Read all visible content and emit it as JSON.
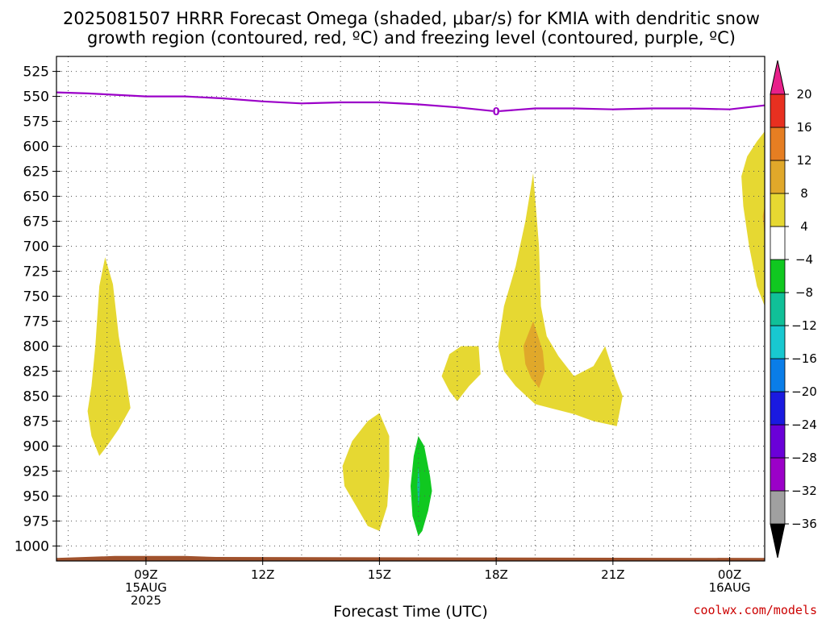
{
  "title": {
    "line1": "2025081507 HRRR Forecast Omega (shaded, μbar/s) for KMIA with dendritic snow",
    "line2": "growth region (contoured, red, ºC) and freezing level (contoured, purple, ºC)"
  },
  "credit": "coolwx.com/models",
  "chart_data": {
    "type": "contour",
    "xlabel": "Forecast Time (UTC)",
    "x_unit": "hours since 2025-08-15 06Z",
    "xlim": [
      6.7,
      24.9
    ],
    "x_ticks": [
      {
        "x": 9,
        "lines": [
          "09Z",
          "15AUG",
          "2025"
        ]
      },
      {
        "x": 12,
        "lines": [
          "12Z"
        ]
      },
      {
        "x": 15,
        "lines": [
          "15Z"
        ]
      },
      {
        "x": 18,
        "lines": [
          "18Z"
        ]
      },
      {
        "x": 21,
        "lines": [
          "21Z"
        ]
      },
      {
        "x": 24,
        "lines": [
          "00Z",
          "16AUG"
        ]
      }
    ],
    "y_unit": "hPa",
    "ylim": [
      1015,
      510
    ],
    "y_ticks": [
      525,
      550,
      575,
      600,
      625,
      650,
      675,
      700,
      725,
      750,
      775,
      800,
      825,
      850,
      875,
      900,
      925,
      950,
      975,
      1000
    ],
    "grid": true,
    "colorbar": {
      "levels": [
        -36,
        -32,
        -28,
        -24,
        -20,
        -16,
        -12,
        -8,
        -4,
        4,
        8,
        12,
        16,
        20
      ],
      "colors": [
        "#a0a0a0",
        "#9b00c8",
        "#6a00d8",
        "#1a1ae0",
        "#0a7de8",
        "#18c8d0",
        "#10c098",
        "#10c820",
        "#ffffff",
        "#e6d832",
        "#e0a82a",
        "#e67e22",
        "#e83020",
        "#e8208a"
      ],
      "under_color": "#000000",
      "over_color": "#e8208a"
    },
    "freezing_level": {
      "label": "0",
      "label_at": {
        "x": 18.0,
        "y": 565
      },
      "color": "#9b00c8",
      "points": [
        [
          6.7,
          546
        ],
        [
          7.5,
          547
        ],
        [
          8,
          548
        ],
        [
          9,
          550
        ],
        [
          10,
          550
        ],
        [
          11,
          552
        ],
        [
          12,
          555
        ],
        [
          13,
          557
        ],
        [
          14,
          556
        ],
        [
          15,
          556
        ],
        [
          16,
          558
        ],
        [
          17,
          561
        ],
        [
          18,
          565
        ],
        [
          19,
          562
        ],
        [
          20,
          562
        ],
        [
          21,
          563
        ],
        [
          22,
          562
        ],
        [
          23,
          562
        ],
        [
          24,
          563
        ],
        [
          24.9,
          559
        ]
      ]
    },
    "omega_regions": [
      {
        "value_range": [
          4,
          8
        ],
        "color": "#e6d832",
        "points": [
          [
            7.5,
            865
          ],
          [
            7.6,
            840
          ],
          [
            7.7,
            800
          ],
          [
            7.8,
            740
          ],
          [
            7.95,
            711
          ],
          [
            8.15,
            738
          ],
          [
            8.3,
            790
          ],
          [
            8.5,
            835
          ],
          [
            8.6,
            862
          ],
          [
            8.3,
            883
          ],
          [
            8.0,
            900
          ],
          [
            7.8,
            910
          ],
          [
            7.6,
            890
          ]
        ]
      },
      {
        "value_range": [
          4,
          8
        ],
        "color": "#e6d832",
        "points": [
          [
            14.05,
            920
          ],
          [
            14.3,
            895
          ],
          [
            14.7,
            875
          ],
          [
            15.0,
            867
          ],
          [
            15.25,
            890
          ],
          [
            15.25,
            930
          ],
          [
            15.2,
            960
          ],
          [
            15.0,
            985
          ],
          [
            14.7,
            980
          ],
          [
            14.4,
            960
          ],
          [
            14.1,
            940
          ]
        ]
      },
      {
        "value_range": [
          -8,
          -4
        ],
        "color": "#10c820",
        "points": [
          [
            15.8,
            940
          ],
          [
            15.88,
            910
          ],
          [
            16.0,
            890
          ],
          [
            16.15,
            900
          ],
          [
            16.3,
            930
          ],
          [
            16.35,
            945
          ],
          [
            16.25,
            965
          ],
          [
            16.1,
            985
          ],
          [
            16.0,
            990
          ],
          [
            15.85,
            970
          ]
        ]
      },
      {
        "value_range": [
          -12,
          -8
        ],
        "color": "#10c098",
        "points": [
          [
            15.97,
            940
          ],
          [
            16.0,
            920
          ],
          [
            16.04,
            938
          ],
          [
            16.02,
            955
          ],
          [
            16.0,
            960
          ]
        ]
      },
      {
        "value_range": [
          4,
          8
        ],
        "color": "#e6d832",
        "points": [
          [
            16.6,
            830
          ],
          [
            16.8,
            808
          ],
          [
            17.1,
            800
          ],
          [
            17.55,
            800
          ],
          [
            17.6,
            828
          ],
          [
            17.3,
            840
          ],
          [
            17.0,
            855
          ],
          [
            16.8,
            845
          ]
        ]
      },
      {
        "value_range": [
          4,
          8
        ],
        "color": "#e6d832",
        "points": [
          [
            18.05,
            800
          ],
          [
            18.2,
            760
          ],
          [
            18.5,
            720
          ],
          [
            18.75,
            675
          ],
          [
            18.95,
            627
          ],
          [
            19.1,
            700
          ],
          [
            19.15,
            760
          ],
          [
            19.3,
            790
          ],
          [
            19.6,
            810
          ],
          [
            20.0,
            830
          ],
          [
            20.5,
            820
          ],
          [
            20.8,
            800
          ],
          [
            21.05,
            830
          ],
          [
            21.25,
            850
          ],
          [
            21.1,
            880
          ],
          [
            20.5,
            875
          ],
          [
            20.0,
            868
          ],
          [
            19.5,
            863
          ],
          [
            19.0,
            858
          ],
          [
            18.5,
            840
          ],
          [
            18.2,
            825
          ]
        ]
      },
      {
        "value_range": [
          8,
          12
        ],
        "color": "#e0a82a",
        "points": [
          [
            18.7,
            800
          ],
          [
            18.95,
            775
          ],
          [
            19.2,
            805
          ],
          [
            19.25,
            825
          ],
          [
            19.1,
            842
          ],
          [
            18.9,
            832
          ],
          [
            18.75,
            818
          ]
        ]
      },
      {
        "value_range": [
          4,
          8
        ],
        "color": "#e6d832",
        "points": [
          [
            24.9,
            585
          ],
          [
            24.7,
            595
          ],
          [
            24.45,
            610
          ],
          [
            24.3,
            630
          ],
          [
            24.35,
            660
          ],
          [
            24.5,
            700
          ],
          [
            24.7,
            740
          ],
          [
            24.9,
            760
          ]
        ]
      },
      {
        "value_range": [
          8,
          12
        ],
        "color": "#e0a82a",
        "points": [
          [
            24.9,
            660
          ],
          [
            24.85,
            670
          ],
          [
            24.9,
            690
          ]
        ]
      }
    ],
    "surface_band": {
      "color": "#a0522d",
      "points": [
        [
          6.7,
          1012
        ],
        [
          8.2,
          1010
        ],
        [
          10,
          1010
        ],
        [
          10.8,
          1011
        ],
        [
          24.9,
          1012
        ],
        [
          24.9,
          1015
        ],
        [
          6.7,
          1015
        ]
      ]
    }
  }
}
